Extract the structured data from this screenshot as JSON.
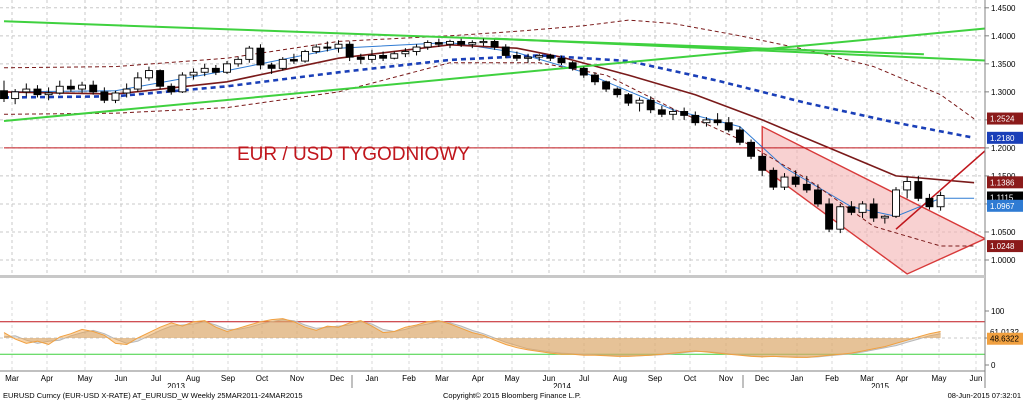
{
  "chart_data": [
    {
      "type": "candlestick",
      "title": "EUR / USD TYGODNIOWY",
      "instrument": "EURUSD Curncy (EUR-USD X-RATE) AT_EURUSD_W Weekly 25MAR2011-24MAR2015",
      "copyright": "Copyright© 2015 Bloomberg Finance L.P.",
      "timestamp": "08-Jun-2015 07:32:01",
      "x_month_labels": [
        "Mar",
        "Apr",
        "May",
        "Jun",
        "Jul",
        "Aug",
        "Sep",
        "Oct",
        "Nov",
        "Dec",
        "Jan",
        "Feb",
        "Mar",
        "Apr",
        "May",
        "Jun",
        "Jul",
        "Aug",
        "Sep",
        "Oct",
        "Nov",
        "Dec",
        "Jan",
        "Feb",
        "Mar",
        "Apr",
        "May",
        "Jun"
      ],
      "x_year_labels": [
        "2013",
        "2014",
        "2015"
      ],
      "ylim": [
        0.975,
        1.455
      ],
      "y_ticks": [
        "1.4500",
        "1.4000",
        "1.3500",
        "1.3000",
        "1.2500",
        "1.2000",
        "1.1500",
        "1.1000",
        "1.0500",
        "1.0000"
      ],
      "candles": [
        [
          1.302,
          1.32,
          1.282,
          1.288
        ],
        [
          1.288,
          1.305,
          1.278,
          1.3
        ],
        [
          1.3,
          1.315,
          1.292,
          1.305
        ],
        [
          1.305,
          1.312,
          1.29,
          1.295
        ],
        [
          1.295,
          1.308,
          1.285,
          1.298
        ],
        [
          1.298,
          1.32,
          1.295,
          1.31
        ],
        [
          1.31,
          1.322,
          1.3,
          1.305
        ],
        [
          1.305,
          1.318,
          1.298,
          1.312
        ],
        [
          1.312,
          1.32,
          1.295,
          1.3
        ],
        [
          1.3,
          1.308,
          1.28,
          1.285
        ],
        [
          1.285,
          1.302,
          1.28,
          1.298
        ],
        [
          1.298,
          1.315,
          1.29,
          1.305
        ],
        [
          1.305,
          1.335,
          1.3,
          1.325
        ],
        [
          1.325,
          1.345,
          1.32,
          1.338
        ],
        [
          1.338,
          1.34,
          1.305,
          1.31
        ],
        [
          1.31,
          1.315,
          1.295,
          1.3
        ],
        [
          1.3,
          1.335,
          1.298,
          1.33
        ],
        [
          1.33,
          1.342,
          1.322,
          1.335
        ],
        [
          1.335,
          1.35,
          1.328,
          1.342
        ],
        [
          1.342,
          1.348,
          1.33,
          1.335
        ],
        [
          1.335,
          1.355,
          1.332,
          1.35
        ],
        [
          1.35,
          1.362,
          1.345,
          1.358
        ],
        [
          1.358,
          1.382,
          1.352,
          1.378
        ],
        [
          1.378,
          1.385,
          1.34,
          1.348
        ],
        [
          1.348,
          1.352,
          1.332,
          1.342
        ],
        [
          1.342,
          1.362,
          1.338,
          1.358
        ],
        [
          1.358,
          1.368,
          1.35,
          1.355
        ],
        [
          1.355,
          1.375,
          1.352,
          1.372
        ],
        [
          1.372,
          1.385,
          1.368,
          1.38
        ],
        [
          1.38,
          1.39,
          1.372,
          1.378
        ],
        [
          1.378,
          1.392,
          1.37,
          1.385
        ],
        [
          1.385,
          1.39,
          1.355,
          1.362
        ],
        [
          1.362,
          1.368,
          1.35,
          1.358
        ],
        [
          1.358,
          1.375,
          1.352,
          1.365
        ],
        [
          1.365,
          1.372,
          1.355,
          1.36
        ],
        [
          1.36,
          1.372,
          1.358,
          1.368
        ],
        [
          1.368,
          1.378,
          1.362,
          1.372
        ],
        [
          1.372,
          1.385,
          1.365,
          1.38
        ],
        [
          1.38,
          1.392,
          1.375,
          1.388
        ],
        [
          1.388,
          1.395,
          1.38,
          1.385
        ],
        [
          1.385,
          1.393,
          1.378,
          1.39
        ],
        [
          1.39,
          1.395,
          1.38,
          1.385
        ],
        [
          1.385,
          1.392,
          1.378,
          1.388
        ],
        [
          1.388,
          1.395,
          1.382,
          1.39
        ],
        [
          1.39,
          1.393,
          1.375,
          1.38
        ],
        [
          1.38,
          1.385,
          1.36,
          1.365
        ],
        [
          1.365,
          1.372,
          1.355,
          1.36
        ],
        [
          1.36,
          1.368,
          1.352,
          1.362
        ],
        [
          1.362,
          1.368,
          1.355,
          1.365
        ],
        [
          1.365,
          1.368,
          1.355,
          1.36
        ],
        [
          1.36,
          1.365,
          1.348,
          1.352
        ],
        [
          1.352,
          1.355,
          1.338,
          1.342
        ],
        [
          1.342,
          1.345,
          1.325,
          1.33
        ],
        [
          1.33,
          1.335,
          1.312,
          1.318
        ],
        [
          1.318,
          1.32,
          1.3,
          1.305
        ],
        [
          1.305,
          1.308,
          1.29,
          1.295
        ],
        [
          1.295,
          1.298,
          1.275,
          1.28
        ],
        [
          1.28,
          1.29,
          1.265,
          1.285
        ],
        [
          1.285,
          1.292,
          1.262,
          1.268
        ],
        [
          1.268,
          1.275,
          1.255,
          1.26
        ],
        [
          1.26,
          1.27,
          1.25,
          1.265
        ],
        [
          1.265,
          1.272,
          1.25,
          1.258
        ],
        [
          1.258,
          1.265,
          1.24,
          1.245
        ],
        [
          1.245,
          1.255,
          1.238,
          1.25
        ],
        [
          1.25,
          1.262,
          1.24,
          1.245
        ],
        [
          1.245,
          1.255,
          1.228,
          1.232
        ],
        [
          1.232,
          1.238,
          1.205,
          1.21
        ],
        [
          1.21,
          1.215,
          1.18,
          1.185
        ],
        [
          1.185,
          1.19,
          1.15,
          1.16
        ],
        [
          1.16,
          1.165,
          1.125,
          1.13
        ],
        [
          1.13,
          1.155,
          1.125,
          1.148
        ],
        [
          1.148,
          1.16,
          1.13,
          1.135
        ],
        [
          1.135,
          1.15,
          1.12,
          1.125
        ],
        [
          1.125,
          1.135,
          1.095,
          1.1
        ],
        [
          1.1,
          1.11,
          1.05,
          1.055
        ],
        [
          1.055,
          1.1,
          1.048,
          1.095
        ],
        [
          1.095,
          1.105,
          1.08,
          1.085
        ],
        [
          1.085,
          1.105,
          1.075,
          1.1
        ],
        [
          1.1,
          1.11,
          1.068,
          1.075
        ],
        [
          1.075,
          1.08,
          1.065,
          1.078
        ],
        [
          1.078,
          1.13,
          1.075,
          1.125
        ],
        [
          1.125,
          1.148,
          1.11,
          1.14
        ],
        [
          1.14,
          1.15,
          1.105,
          1.11
        ],
        [
          1.11,
          1.118,
          1.09,
          1.095
        ],
        [
          1.095,
          1.122,
          1.088,
          1.115
        ]
      ],
      "lines": [
        {
          "color": "#2f7bd3",
          "width": 1,
          "dash": "",
          "points": [
            [
              0,
              1.3
            ],
            [
              10,
              1.302
            ],
            [
              20,
              1.338
            ],
            [
              30,
              1.378
            ],
            [
              40,
              1.388
            ],
            [
              46,
              1.37
            ],
            [
              52,
              1.335
            ],
            [
              60,
              1.268
            ],
            [
              66,
              1.238
            ],
            [
              70,
              1.165
            ],
            [
              76,
              1.095
            ],
            [
              80,
              1.078
            ],
            [
              84,
              1.11
            ],
            [
              87,
              1.11
            ]
          ]
        },
        {
          "color": "#7a1a1a",
          "width": 1.6,
          "dash": "",
          "points": [
            [
              0,
              1.3
            ],
            [
              10,
              1.296
            ],
            [
              20,
              1.318
            ],
            [
              30,
              1.36
            ],
            [
              40,
              1.384
            ],
            [
              46,
              1.378
            ],
            [
              50,
              1.362
            ],
            [
              56,
              1.33
            ],
            [
              62,
              1.295
            ],
            [
              68,
              1.25
            ],
            [
              74,
              1.2
            ],
            [
              80,
              1.15
            ],
            [
              87,
              1.138
            ]
          ]
        },
        {
          "color": "#1a3fb8",
          "width": 2.6,
          "dash": "5,4",
          "points": [
            [
              0,
              1.29
            ],
            [
              10,
              1.292
            ],
            [
              20,
              1.31
            ],
            [
              30,
              1.335
            ],
            [
              40,
              1.357
            ],
            [
              48,
              1.365
            ],
            [
              56,
              1.355
            ],
            [
              64,
              1.32
            ],
            [
              72,
              1.28
            ],
            [
              80,
              1.245
            ],
            [
              87,
              1.218
            ]
          ]
        },
        {
          "color": "#7a1a1a",
          "width": 1,
          "dash": "4,3",
          "points": [
            [
              0,
              1.343
            ],
            [
              10,
              1.345
            ],
            [
              20,
              1.36
            ],
            [
              30,
              1.39
            ],
            [
              40,
              1.4
            ],
            [
              46,
              1.408
            ],
            [
              52,
              1.418
            ],
            [
              56,
              1.428
            ],
            [
              60,
              1.422
            ],
            [
              66,
              1.4
            ],
            [
              72,
              1.375
            ],
            [
              78,
              1.345
            ],
            [
              84,
              1.295
            ],
            [
              87,
              1.252
            ]
          ]
        },
        {
          "color": "#7a1a1a",
          "width": 1,
          "dash": "4,3",
          "points": [
            [
              0,
              1.26
            ],
            [
              10,
              1.262
            ],
            [
              20,
              1.272
            ],
            [
              30,
              1.3
            ],
            [
              40,
              1.352
            ],
            [
              48,
              1.352
            ],
            [
              54,
              1.33
            ],
            [
              60,
              1.27
            ],
            [
              66,
              1.215
            ],
            [
              72,
              1.145
            ],
            [
              78,
              1.06
            ],
            [
              84,
              1.025
            ],
            [
              87,
              1.025
            ]
          ]
        },
        {
          "color": "#3fd13f",
          "width": 2,
          "dash": "",
          "points": [
            [
              0,
              1.426
            ],
            [
              82.5,
              1.367
            ]
          ]
        },
        {
          "color": "#3fd13f",
          "width": 2,
          "dash": "",
          "points": [
            [
              0,
              1.248
            ],
            [
              88,
              1.413
            ]
          ]
        },
        {
          "color": "#3fd13f",
          "width": 2,
          "dash": "",
          "points": [
            [
              44,
              1.395
            ],
            [
              88,
              1.356
            ]
          ]
        },
        {
          "color": "#c0161c",
          "width": 1,
          "dash": "",
          "points": [
            [
              0,
              1.2
            ],
            [
              88,
              1.2
            ]
          ]
        },
        {
          "color": "#c0161c",
          "width": 1.6,
          "dash": "",
          "points": [
            [
              80,
              1.055
            ],
            [
              88,
              1.195
            ]
          ]
        }
      ],
      "channel": {
        "upper": [
          [
            68,
            1.238
          ],
          [
            88,
            1.038
          ]
        ],
        "lower": [
          [
            68,
            1.165
          ],
          [
            81,
            0.975
          ]
        ]
      },
      "right_labels": [
        {
          "text": "1.2524",
          "value": 1.2524,
          "bg": "#8b1a1a",
          "fg": "#ffffff"
        },
        {
          "text": "1.2180",
          "value": 1.218,
          "bg": "#1a3fb8",
          "fg": "#ffffff"
        },
        {
          "text": "1.1386",
          "value": 1.1386,
          "bg": "#8b1a1a",
          "fg": "#ffffff"
        },
        {
          "text": "1.1115",
          "value": 1.1115,
          "bg": "#000000",
          "fg": "#ffffff"
        },
        {
          "text": "1.0967",
          "value": 1.0967,
          "bg": "#2f7bd3",
          "fg": "#ffffff"
        },
        {
          "text": "1.0248",
          "value": 1.0248,
          "bg": "#8b1a1a",
          "fg": "#ffffff"
        }
      ]
    },
    {
      "type": "area",
      "ylim": [
        0,
        100
      ],
      "y_ticks": [
        "100",
        "50",
        "0"
      ],
      "levels": [
        {
          "value": 80,
          "color": "#c0161c"
        },
        {
          "value": 20,
          "color": "#3fd13f"
        }
      ],
      "series": [
        {
          "color": "#f0a040",
          "values": [
            60,
            48,
            40,
            44,
            38,
            52,
            58,
            66,
            62,
            55,
            40,
            38,
            50,
            60,
            70,
            78,
            72,
            80,
            82,
            70,
            62,
            68,
            74,
            80,
            84,
            86,
            80,
            70,
            64,
            72,
            70,
            78,
            82,
            72,
            60,
            62,
            70,
            74,
            80,
            82,
            76,
            68,
            60,
            55,
            46,
            38,
            32,
            28,
            25,
            22,
            20,
            20,
            18,
            18,
            17,
            16,
            16,
            17,
            18,
            20,
            22,
            24,
            26,
            24,
            22,
            20,
            18,
            16,
            15,
            16,
            15,
            14,
            14,
            16,
            18,
            20,
            22,
            26,
            30,
            34,
            40,
            46,
            52,
            58,
            62
          ]
        },
        {
          "color": "#b8b8b8",
          "values": [
            52,
            54,
            46,
            40,
            44,
            46,
            54,
            60,
            64,
            58,
            48,
            40,
            44,
            54,
            64,
            72,
            74,
            76,
            80,
            74,
            66,
            66,
            70,
            76,
            80,
            84,
            82,
            74,
            68,
            70,
            72,
            74,
            80,
            76,
            66,
            62,
            66,
            72,
            76,
            80,
            78,
            72,
            64,
            58,
            50,
            42,
            36,
            30,
            27,
            24,
            22,
            21,
            20,
            19,
            18,
            17,
            17,
            17,
            18,
            19,
            21,
            23,
            25,
            25,
            23,
            21,
            19,
            17,
            16,
            16,
            15,
            15,
            14,
            15,
            17,
            19,
            21,
            24,
            28,
            32,
            36,
            42,
            48,
            54,
            58
          ]
        }
      ],
      "right_labels": [
        {
          "text": "61.0132",
          "value": 61.0132,
          "bg": "#ffffff",
          "fg": "#000000"
        },
        {
          "text": "48.6322",
          "value": 48.6322,
          "bg": "#f0a040",
          "fg": "#000000"
        }
      ]
    }
  ]
}
